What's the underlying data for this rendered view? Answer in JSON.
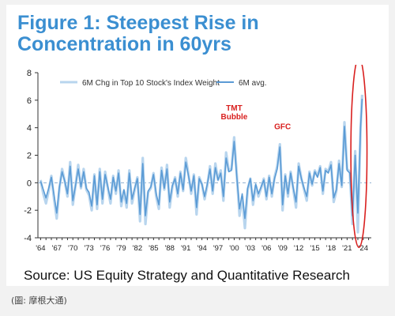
{
  "title": "Figure 1: Steepest Rise in Concentration in 60yrs",
  "source": "Source: US Equity Strategy and Quantitative Research",
  "credit": "(圖: 摩根大通)",
  "colors": {
    "title": "#3b8fd1",
    "series_light": "#b8d5ee",
    "series_dark": "#5b9bd5",
    "annotation": "#d9201f",
    "zero_line": "#8faed0"
  },
  "chart_data": {
    "type": "line",
    "title": "",
    "xlabel": "",
    "ylabel": "",
    "ylim": [
      -4,
      8
    ],
    "yticks": [
      -4,
      -2,
      0,
      2,
      4,
      6,
      8
    ],
    "xlim": [
      1963.5,
      2025.5
    ],
    "xticks": [
      "'64",
      "'67",
      "'70",
      "'73",
      "'76",
      "'79",
      "'82",
      "'85",
      "'88",
      "'91",
      "'94",
      "'97",
      "'00",
      "'03",
      "'06",
      "'09",
      "'12",
      "'15",
      "'18",
      "'21",
      "'24"
    ],
    "xtick_years": [
      1964,
      1967,
      1970,
      1973,
      1976,
      1979,
      1982,
      1985,
      1988,
      1991,
      1994,
      1997,
      2000,
      2003,
      2006,
      2009,
      2012,
      2015,
      2018,
      2021,
      2024
    ],
    "grid": false,
    "legend_position": "top",
    "series": [
      {
        "name": "6M Chg in Top 10 Stock's Index Weight",
        "x": [
          1964,
          1964.5,
          1965,
          1965.5,
          1966,
          1966.5,
          1967,
          1967.5,
          1968,
          1968.5,
          1969,
          1969.5,
          1970,
          1970.5,
          1971,
          1971.5,
          1972,
          1972.5,
          1973,
          1973.5,
          1974,
          1974.5,
          1975,
          1975.5,
          1976,
          1976.5,
          1977,
          1977.5,
          1978,
          1978.5,
          1979,
          1979.5,
          1980,
          1980.5,
          1981,
          1981.5,
          1982,
          1982.5,
          1983,
          1983.5,
          1984,
          1984.5,
          1985,
          1985.5,
          1986,
          1986.5,
          1987,
          1987.5,
          1988,
          1988.5,
          1989,
          1989.5,
          1990,
          1990.5,
          1991,
          1991.5,
          1992,
          1992.5,
          1993,
          1993.5,
          1994,
          1994.5,
          1995,
          1995.5,
          1996,
          1996.5,
          1997,
          1997.5,
          1998,
          1998.5,
          1999,
          1999.5,
          2000,
          2000.5,
          2001,
          2001.5,
          2002,
          2002.5,
          2003,
          2003.5,
          2004,
          2004.5,
          2005,
          2005.5,
          2006,
          2006.5,
          2007,
          2007.5,
          2008,
          2008.5,
          2009,
          2009.5,
          2010,
          2010.5,
          2011,
          2011.5,
          2012,
          2012.5,
          2013,
          2013.5,
          2014,
          2014.5,
          2015,
          2015.5,
          2016,
          2016.5,
          2017,
          2017.5,
          2018,
          2018.5,
          2019,
          2019.5,
          2020,
          2020.5,
          2021,
          2021.5,
          2022,
          2022.5,
          2023,
          2023.5,
          2023.8
        ],
        "values": [
          0.2,
          -0.8,
          -1.5,
          -0.6,
          0.5,
          -1.2,
          -2.6,
          -0.4,
          1.0,
          0.1,
          -1.0,
          1.5,
          -1.6,
          -0.2,
          1.3,
          -0.4,
          1.0,
          -0.5,
          -0.9,
          -2.0,
          0.6,
          -1.9,
          1.0,
          -1.5,
          0.8,
          -0.4,
          -1.5,
          0.5,
          -0.8,
          0.9,
          -1.7,
          -0.6,
          -1.8,
          0.9,
          -1.5,
          -0.5,
          0.4,
          -2.8,
          1.8,
          -3.0,
          -0.7,
          -0.4,
          0.7,
          -1.0,
          -1.9,
          1.1,
          -0.5,
          1.3,
          -1.8,
          -0.3,
          0.4,
          -1.0,
          0.8,
          -0.6,
          1.8,
          0.6,
          -0.8,
          0.6,
          -2.3,
          0.4,
          -0.1,
          -1.2,
          -0.2,
          1.2,
          -0.8,
          1.4,
          0.2,
          0.9,
          -1.3,
          2.2,
          0.9,
          1.0,
          3.3,
          0.5,
          -2.4,
          -1.0,
          -3.3,
          -0.5,
          0.3,
          -1.6,
          -0.2,
          -1.0,
          -0.4,
          0.3,
          -1.2,
          0.5,
          -1.0,
          0.4,
          1.2,
          2.8,
          -2.0,
          0.6,
          -1.0,
          0.8,
          -0.5,
          -1.8,
          1.4,
          0.3,
          -0.5,
          -1.3,
          0.8,
          -0.2,
          0.9,
          0.5,
          1.2,
          -0.8,
          1.0,
          0.8,
          1.5,
          -1.4,
          -0.6,
          1.6,
          -0.3,
          4.4,
          1.0,
          0.8,
          -3.0,
          2.3,
          -3.6,
          4.0,
          6.4
        ]
      },
      {
        "name": "6M avg.",
        "x": [
          1964,
          1964.5,
          1965,
          1965.5,
          1966,
          1966.5,
          1967,
          1967.5,
          1968,
          1968.5,
          1969,
          1969.5,
          1970,
          1970.5,
          1971,
          1971.5,
          1972,
          1972.5,
          1973,
          1973.5,
          1974,
          1974.5,
          1975,
          1975.5,
          1976,
          1976.5,
          1977,
          1977.5,
          1978,
          1978.5,
          1979,
          1979.5,
          1980,
          1980.5,
          1981,
          1981.5,
          1982,
          1982.5,
          1983,
          1983.5,
          1984,
          1984.5,
          1985,
          1985.5,
          1986,
          1986.5,
          1987,
          1987.5,
          1988,
          1988.5,
          1989,
          1989.5,
          1990,
          1990.5,
          1991,
          1991.5,
          1992,
          1992.5,
          1993,
          1993.5,
          1994,
          1994.5,
          1995,
          1995.5,
          1996,
          1996.5,
          1997,
          1997.5,
          1998,
          1998.5,
          1999,
          1999.5,
          2000,
          2000.5,
          2001,
          2001.5,
          2002,
          2002.5,
          2003,
          2003.5,
          2004,
          2004.5,
          2005,
          2005.5,
          2006,
          2006.5,
          2007,
          2007.5,
          2008,
          2008.5,
          2009,
          2009.5,
          2010,
          2010.5,
          2011,
          2011.5,
          2012,
          2012.5,
          2013,
          2013.5,
          2014,
          2014.5,
          2015,
          2015.5,
          2016,
          2016.5,
          2017,
          2017.5,
          2018,
          2018.5,
          2019,
          2019.5,
          2020,
          2020.5,
          2021,
          2021.5,
          2022,
          2022.5,
          2023,
          2023.5,
          2023.8
        ],
        "values": [
          0.1,
          -0.5,
          -1.1,
          -0.4,
          0.4,
          -0.9,
          -2.2,
          -0.3,
          0.8,
          0.1,
          -0.8,
          1.2,
          -1.3,
          -0.2,
          1.0,
          -0.3,
          0.8,
          -0.4,
          -0.7,
          -1.7,
          0.5,
          -1.6,
          0.8,
          -1.2,
          0.6,
          -0.3,
          -1.2,
          0.4,
          -0.6,
          0.7,
          -1.4,
          -0.5,
          -1.5,
          0.7,
          -1.2,
          -0.4,
          0.3,
          -2.3,
          1.4,
          -2.4,
          -0.6,
          -0.3,
          0.6,
          -0.8,
          -1.6,
          0.9,
          -0.4,
          1.0,
          -1.4,
          -0.2,
          0.3,
          -0.8,
          0.7,
          -0.5,
          1.5,
          0.5,
          -0.6,
          0.5,
          -1.8,
          0.3,
          -0.1,
          -1.0,
          -0.1,
          1.0,
          -0.6,
          1.1,
          0.2,
          0.7,
          -1.0,
          1.8,
          0.8,
          0.9,
          3.0,
          0.4,
          -1.9,
          -0.8,
          -2.6,
          -0.4,
          0.3,
          -1.3,
          -0.1,
          -0.8,
          -0.3,
          0.2,
          -1.0,
          0.4,
          -0.8,
          0.3,
          1.0,
          2.6,
          -1.6,
          0.5,
          -0.8,
          0.7,
          -0.4,
          -1.4,
          1.2,
          0.3,
          -0.4,
          -1.0,
          0.7,
          -0.1,
          0.8,
          0.4,
          1.1,
          -0.6,
          0.9,
          0.7,
          1.3,
          -1.1,
          -0.5,
          1.4,
          -0.2,
          4.1,
          0.9,
          0.7,
          -2.4,
          2.0,
          -2.2,
          4.0,
          6.1
        ]
      }
    ],
    "annotations": [
      {
        "lines": [
          "TMT",
          "Bubble"
        ],
        "x": 2000,
        "y": 4.6
      },
      {
        "lines": [
          "GFC"
        ],
        "x": 2009,
        "y": 3.9
      }
    ],
    "highlight": {
      "shape": "ellipse",
      "x_center": 2023.2,
      "y_center": 2.2,
      "x_radius": 1.5,
      "y_radius": 6.9
    }
  }
}
